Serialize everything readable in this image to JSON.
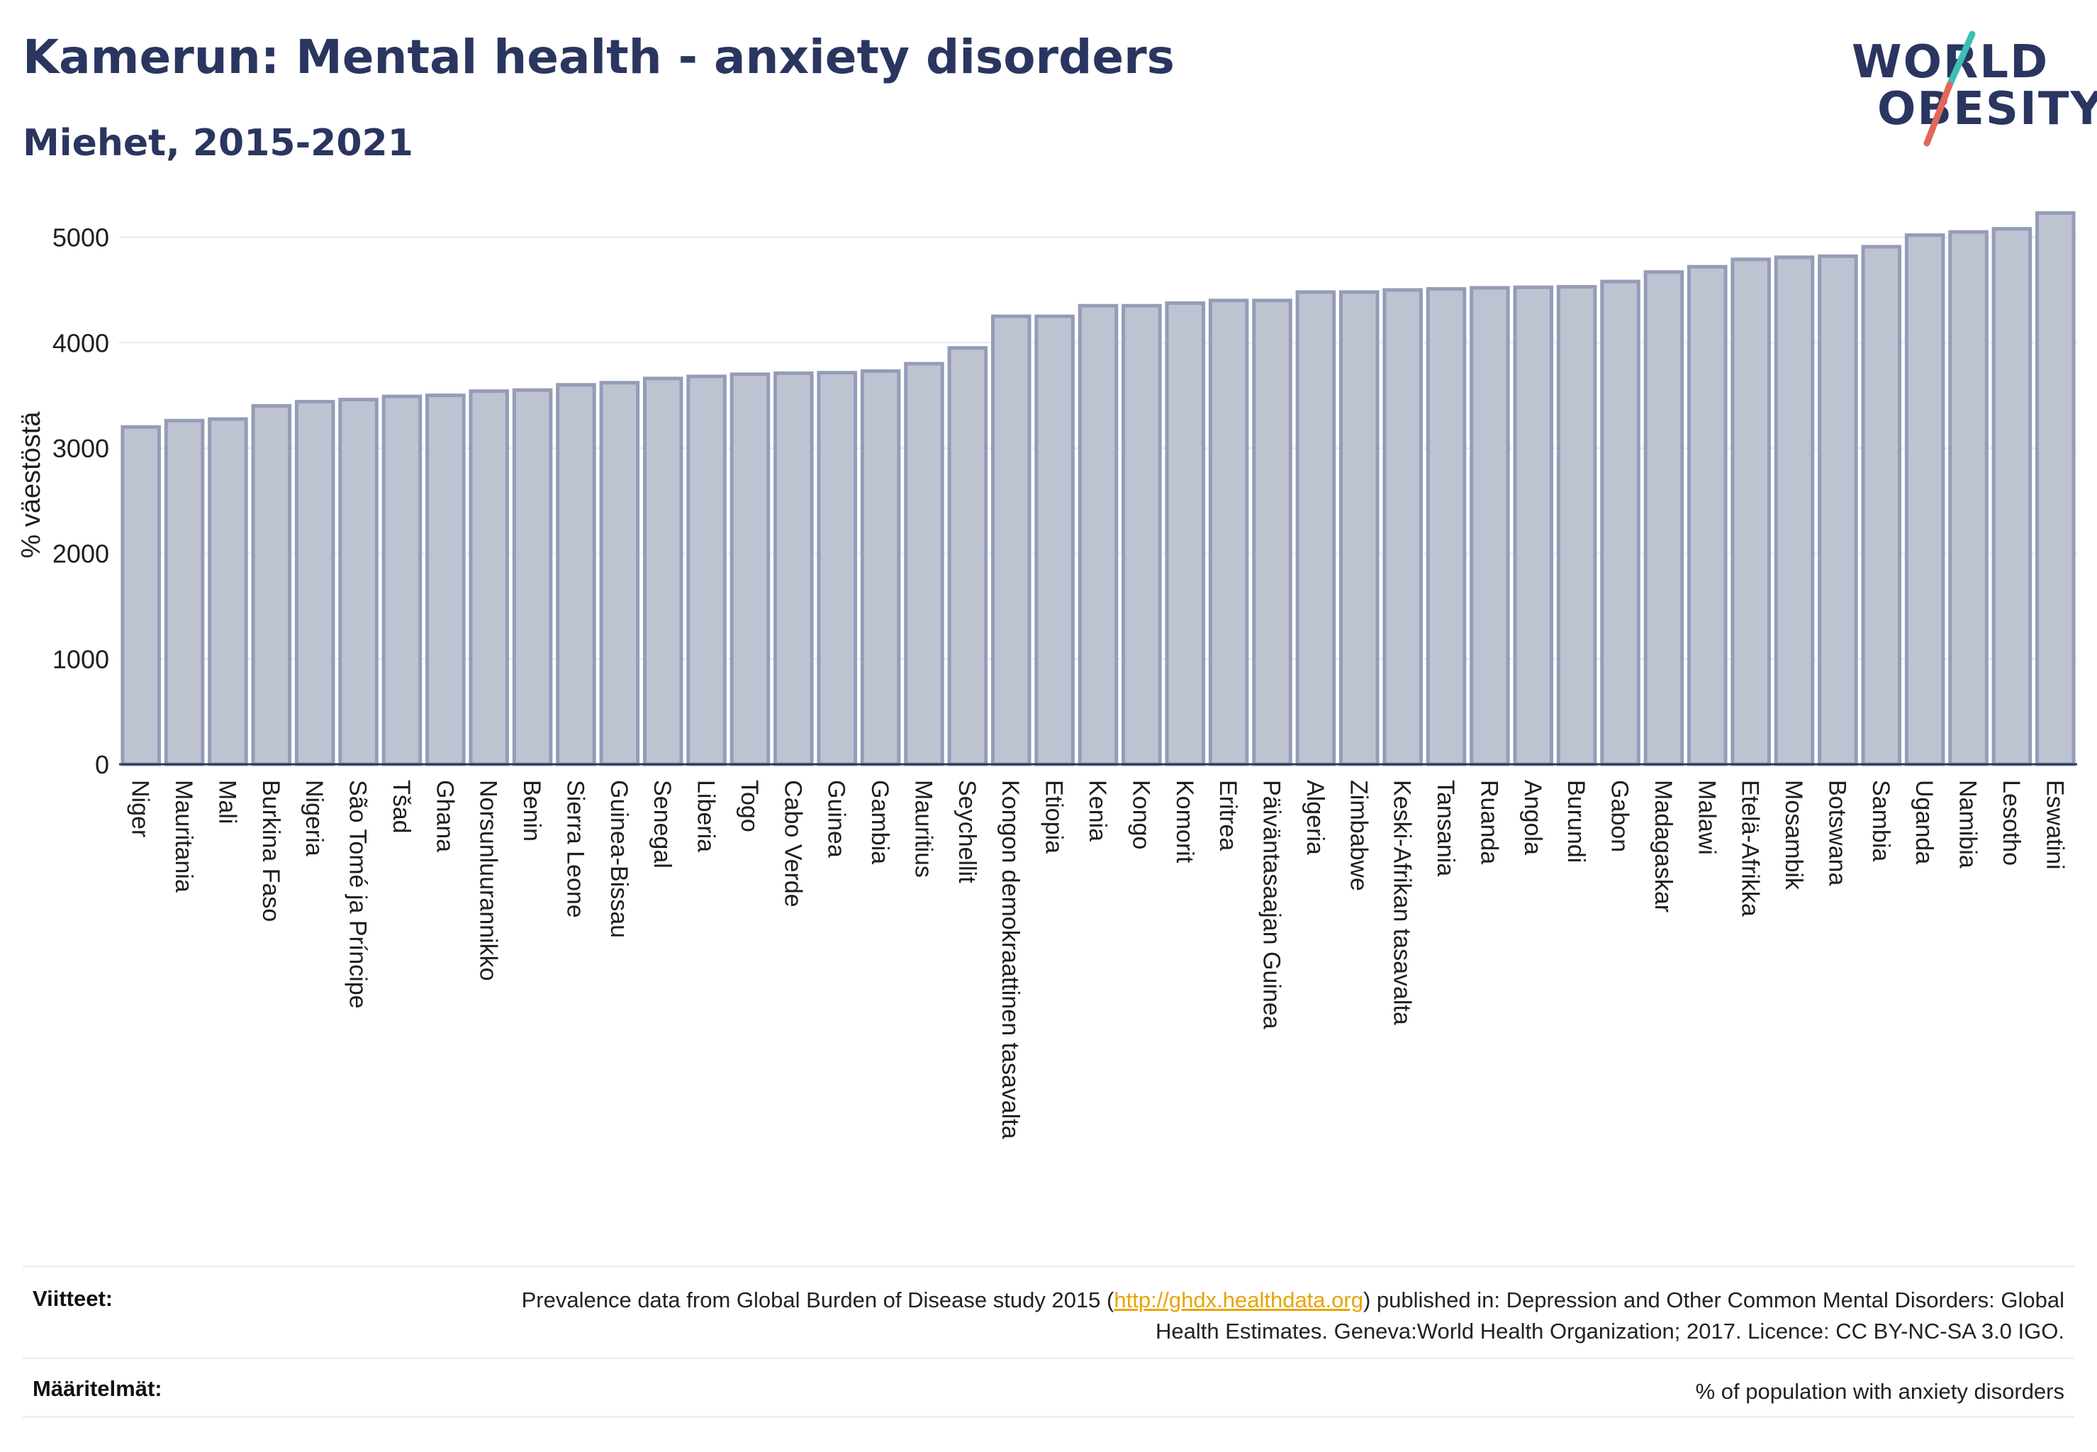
{
  "header": {
    "title": "Kamerun: Mental health - anxiety disorders",
    "subtitle": "Miehet, 2015-2021"
  },
  "logo": {
    "line1": "WORLD",
    "line2": "OBESITY"
  },
  "colors": {
    "bar_fill": "#bec3d1",
    "bar_stroke": "#959cb7",
    "text": "#2a3660",
    "link": "#e8a400",
    "logo_teal": "#3cbfb6",
    "logo_red": "#e2675a"
  },
  "chart_data": {
    "type": "bar",
    "ylabel": "% väestöstä",
    "xlabel": "",
    "ylim": [
      0,
      5300
    ],
    "yticks": [
      0,
      1000,
      2000,
      3000,
      4000,
      5000
    ],
    "grid": true,
    "categories": [
      "Niger",
      "Mauritania",
      "Mali",
      "Burkina Faso",
      "Nigeria",
      "São Tomé ja Príncipe",
      "Tšad",
      "Ghana",
      "Norsunluurannikko",
      "Benin",
      "Sierra Leone",
      "Guinea-Bissau",
      "Senegal",
      "Liberia",
      "Togo",
      "Cabo Verde",
      "Guinea",
      "Gambia",
      "Mauritius",
      "Seychellit",
      "Kongon demokraattinen tasavalta",
      "Etiopia",
      "Kenia",
      "Kongo",
      "Komorit",
      "Eritrea",
      "Päiväntasaajan Guinea",
      "Algeria",
      "Zimbabwe",
      "Keski-Afrikan tasavalta",
      "Tansania",
      "Ruanda",
      "Angola",
      "Burundi",
      "Gabon",
      "Madagaskar",
      "Malawi",
      "Etelä-Afrikka",
      "Mosambik",
      "Botswana",
      "Sambia",
      "Uganda",
      "Namibia",
      "Lesotho",
      "Eswatini"
    ],
    "values": [
      3200,
      3260,
      3275,
      3400,
      3440,
      3460,
      3490,
      3500,
      3540,
      3550,
      3600,
      3620,
      3660,
      3680,
      3700,
      3710,
      3715,
      3730,
      3800,
      3950,
      4250,
      4250,
      4350,
      4350,
      4375,
      4400,
      4400,
      4480,
      4480,
      4500,
      4510,
      4520,
      4525,
      4530,
      4580,
      4670,
      4720,
      4790,
      4810,
      4820,
      4910,
      5020,
      5050,
      5080,
      5230
    ]
  },
  "references": {
    "label": "Viitteet:",
    "text_before": "Prevalence data from Global Burden of Disease study 2015 (",
    "link": "http://ghdx.healthdata.org",
    "text_after": ") published in: Depression and Other Common Mental Disorders: Global Health Estimates. Geneva:World Health Organization; 2017. Licence: CC BY-NC-SA 3.0 IGO."
  },
  "definitions": {
    "label": "Määritelmät:",
    "text": "% of population with anxiety disorders"
  }
}
